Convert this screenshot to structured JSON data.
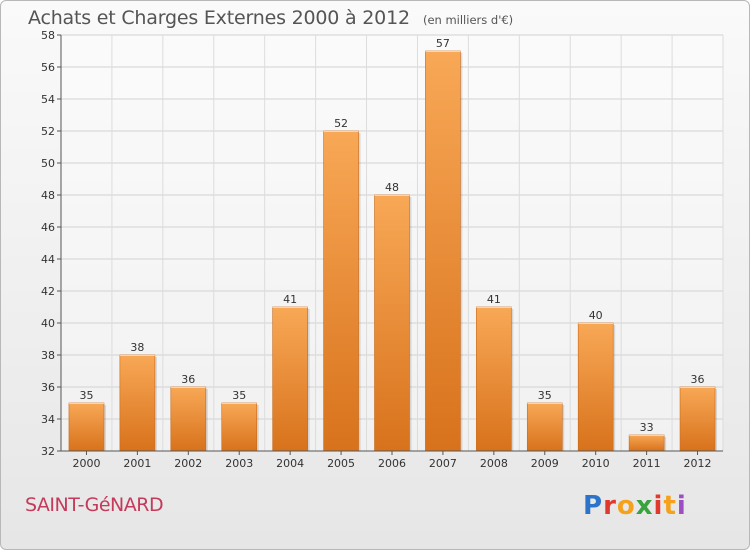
{
  "header": {
    "title": "Achats et Charges Externes 2000 à 2012",
    "unit": "(en milliers d'€)"
  },
  "footer": {
    "location": "SAINT-GéNARD",
    "brand": "Proxiti",
    "brand_colors": [
      "#2b74c9",
      "#e03a2f",
      "#f4a11b",
      "#3aa33d",
      "#e03a2f",
      "#f4a11b",
      "#9b4fc2"
    ],
    "location_color": "#c53a5a"
  },
  "chart_data": {
    "type": "bar",
    "title": "Achats et Charges Externes 2000 à 2012",
    "subtitle": "(en milliers d'€)",
    "categories": [
      "2000",
      "2001",
      "2002",
      "2003",
      "2004",
      "2005",
      "2006",
      "2007",
      "2008",
      "2009",
      "2010",
      "2011",
      "2012"
    ],
    "values": [
      35,
      38,
      36,
      35,
      41,
      52,
      48,
      57,
      41,
      35,
      40,
      33,
      36
    ],
    "ylim": [
      32,
      58
    ],
    "yticks": [
      32,
      34,
      36,
      38,
      40,
      42,
      44,
      46,
      48,
      50,
      52,
      54,
      56,
      58
    ],
    "grid": true,
    "bar_color": "#f0923a",
    "data_labels": true
  }
}
